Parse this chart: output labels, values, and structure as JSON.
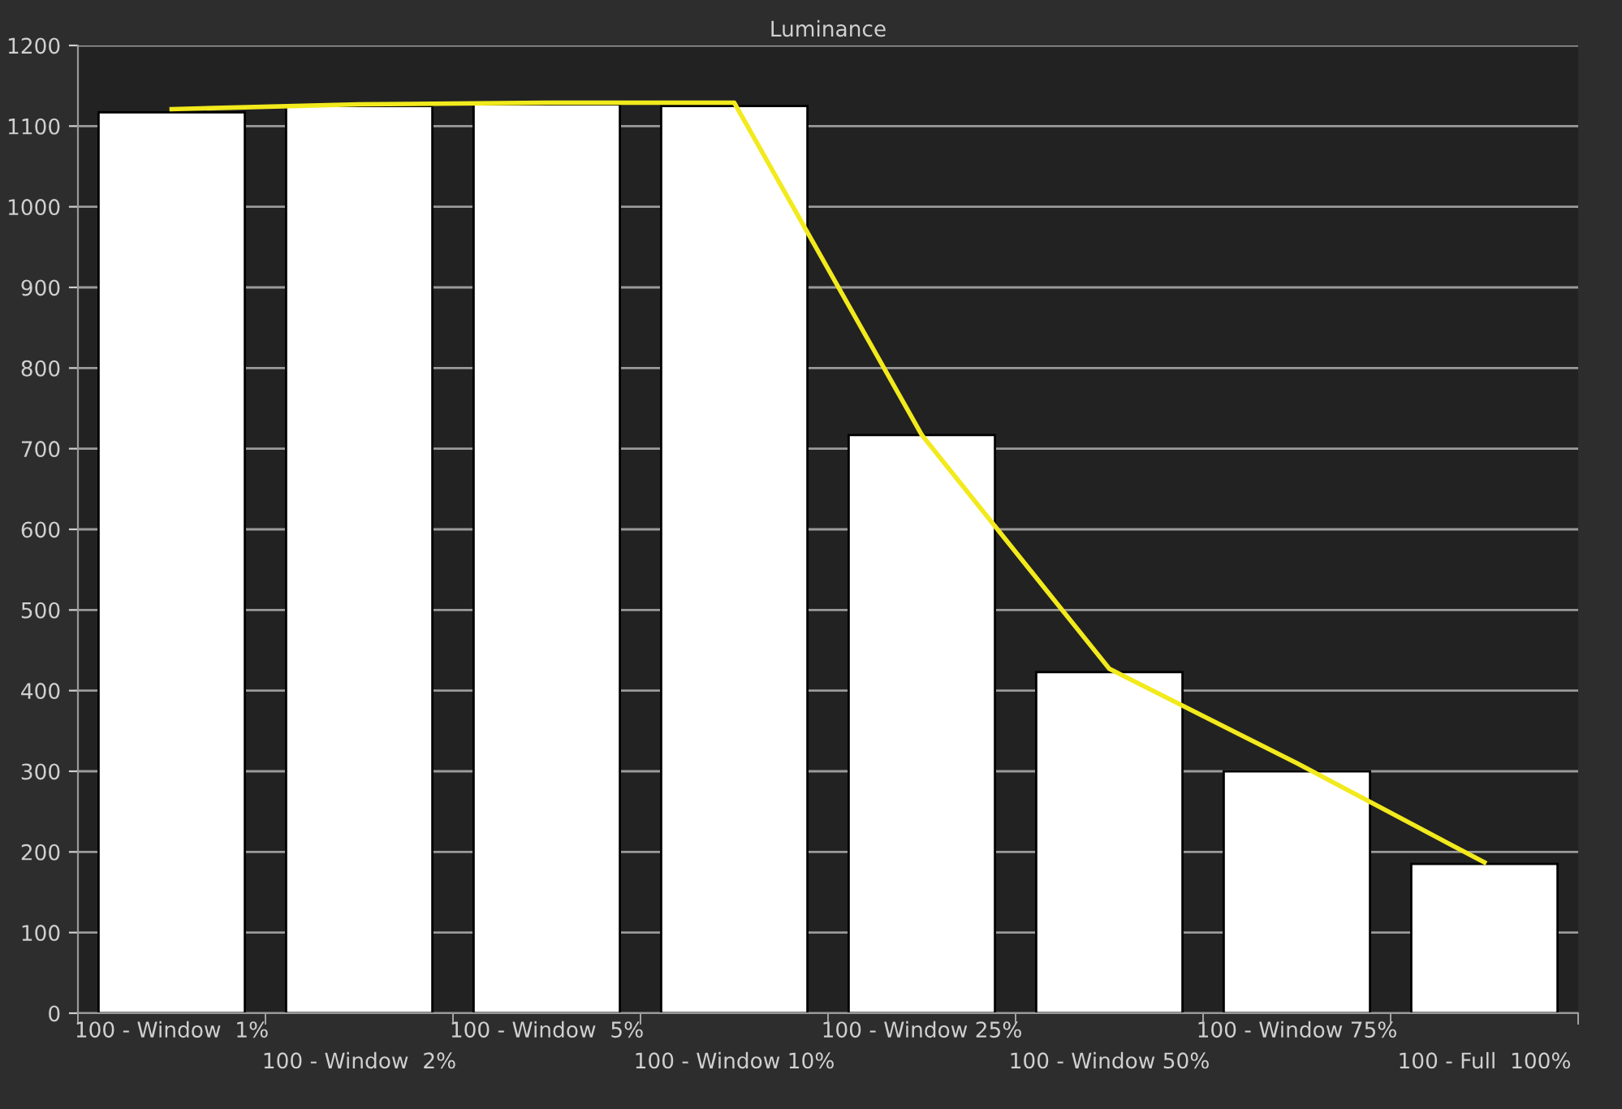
{
  "chart_data": {
    "type": "bar",
    "title": "Luminance",
    "categories": [
      "100 - Window  1%",
      "100 - Window  2%",
      "100 - Window  5%",
      "100 - Window 10%",
      "100 - Window 25%",
      "100 - Window 50%",
      "100 - Window 75%",
      "100 - Full  100%"
    ],
    "series": [
      {
        "color": "#ffffff",
        "values": [
          1117,
          1125,
          1127,
          1125,
          717,
          423,
          300,
          185
        ]
      },
      {
        "type": "line",
        "color": "#f2ea1c",
        "values": [
          1121,
          1127,
          1129,
          1129,
          717,
          427,
          310,
          187
        ]
      }
    ],
    "ylim": [
      0,
      1200
    ],
    "yticks": [
      0,
      100,
      200,
      300,
      400,
      500,
      600,
      700,
      800,
      900,
      1000,
      1100,
      1200
    ],
    "grid": "y",
    "marker": "none",
    "line_style": "solid"
  }
}
